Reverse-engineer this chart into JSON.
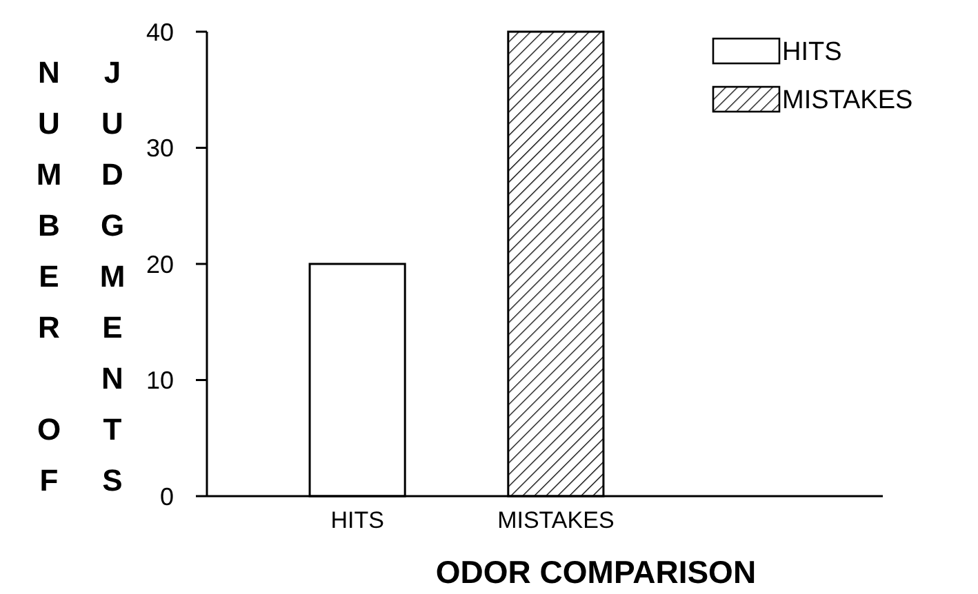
{
  "chart_data": {
    "type": "bar",
    "xlabel": "ODOR COMPARISON",
    "ylabel": "NUMBER OF JUDGMENTS",
    "categories": [
      "HITS",
      "MISTAKES"
    ],
    "series": [
      {
        "name": "HITS",
        "color": "#ffffff",
        "values": [
          20,
          null
        ]
      },
      {
        "name": "MISTAKES",
        "color": "#000000",
        "values": [
          null,
          40
        ]
      }
    ],
    "ylim": [
      0,
      40
    ],
    "yticks": [
      0,
      10,
      20,
      30,
      40
    ],
    "grid": false,
    "legend": "top right"
  }
}
